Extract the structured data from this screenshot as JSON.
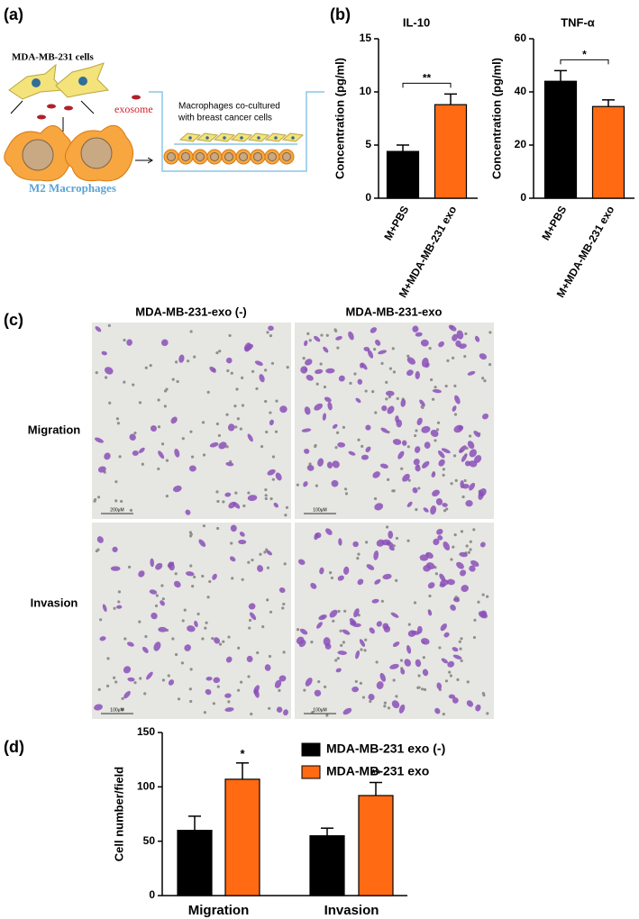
{
  "panel_labels": [
    "(a)",
    "(b)",
    "(c)",
    "(d)"
  ],
  "diagram": {
    "cells_label": "MDA-MB-231 cells",
    "exosome_label": "exosome",
    "macrophage_label": "M2 Macrophages",
    "coculture_label": [
      "Macrophages co-cultured",
      "with breast cancer cells"
    ]
  },
  "micrographs": {
    "columns": [
      "MDA-MB-231-exo (-)",
      "MDA-MB-231-exo"
    ],
    "rows": [
      "Migration",
      "Invasion"
    ],
    "scale_bars": [
      "200μM",
      "100μM",
      "100μM",
      "100μM"
    ]
  },
  "chart_data": [
    {
      "type": "bar",
      "title": "IL-10",
      "y_label": "Concentration (pg/ml)",
      "categories": [
        "M+PBS",
        "M+MDA-MB-231 exo"
      ],
      "values": [
        4.4,
        8.8
      ],
      "errors": [
        0.6,
        1.0
      ],
      "colors": [
        "#000000",
        "#ff6a13"
      ],
      "ylim": [
        0,
        15
      ],
      "yticks": [
        0,
        5,
        10,
        15
      ],
      "significance": "**"
    },
    {
      "type": "bar",
      "title": "TNF-α",
      "y_label": "Concentration (pg/ml)",
      "categories": [
        "M+PBS",
        "M+MDA-MB-231 exo"
      ],
      "values": [
        44,
        34.5
      ],
      "errors": [
        4,
        2.5
      ],
      "colors": [
        "#000000",
        "#ff6a13"
      ],
      "ylim": [
        0,
        60
      ],
      "yticks": [
        0,
        20,
        40,
        60
      ],
      "significance": "*"
    },
    {
      "type": "grouped-bar",
      "y_label": "Cell number/field",
      "categories": [
        "Migration",
        "Invasion"
      ],
      "series": [
        {
          "name": "MDA-MB-231 exo (-)",
          "color": "#000000",
          "values": [
            60,
            55
          ],
          "errors": [
            13,
            7
          ]
        },
        {
          "name": "MDA-MB-231 exo",
          "color": "#ff6a13",
          "values": [
            107,
            92
          ],
          "errors": [
            15,
            12
          ],
          "value_annotations": [
            "*",
            "**"
          ]
        }
      ],
      "ylim": [
        0,
        150
      ],
      "yticks": [
        0,
        50,
        100,
        150
      ],
      "legend": "top"
    }
  ]
}
